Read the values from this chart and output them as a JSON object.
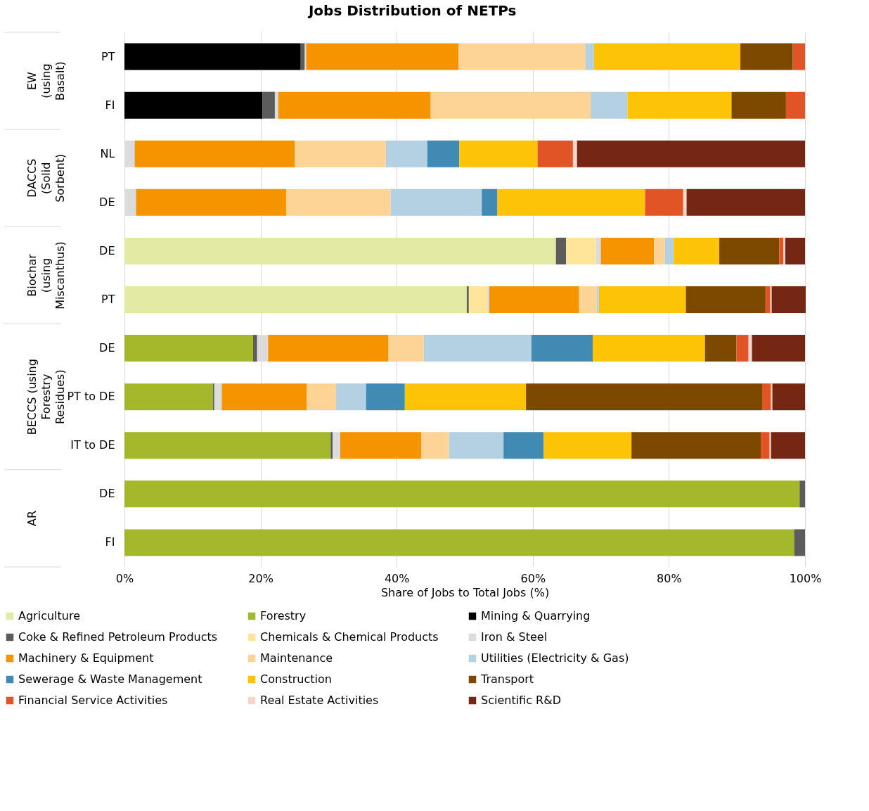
{
  "chart_data": {
    "type": "bar",
    "orientation": "horizontal",
    "stacked": true,
    "title": "Jobs Distribution of NETPs",
    "xlabel": "Share of Jobs to Total Jobs (%)",
    "categories": [
      "PT",
      "FI",
      "NL",
      "DE",
      "DE",
      "PT",
      "DE",
      "PT to DE",
      "IT to DE",
      "DE",
      "FI"
    ],
    "annotations": [
      "EW\n(using\nBasalt)",
      "DACCS\n(Solid\nSorbent)",
      "Biochar\n(using\nMiscanthus)",
      "BECCS (using\nForestry\nResidues)",
      "AR"
    ],
    "xlim": [
      0,
      100
    ],
    "xticks": [
      {
        "value": 0,
        "label": "0%"
      },
      {
        "value": 20,
        "label": "20%"
      },
      {
        "value": 40,
        "label": "40%"
      },
      {
        "value": 60,
        "label": "60%"
      },
      {
        "value": 80,
        "label": "80%"
      },
      {
        "value": 100,
        "label": "100%"
      }
    ],
    "grid": "x",
    "legend": "bottom",
    "series": [
      {
        "name": "Agriculture",
        "color": "#e2eaa3",
        "values": [
          null,
          null,
          null,
          null,
          63.4,
          50.3,
          null,
          null,
          null,
          null,
          null
        ]
      },
      {
        "name": "Forestry",
        "color": "#a5b72a",
        "values": [
          null,
          null,
          null,
          null,
          null,
          null,
          18.9,
          13.0,
          30.3,
          99.2,
          98.4
        ]
      },
      {
        "name": "Mining & Quarrying",
        "color": "#000000",
        "values": [
          25.9,
          20.3,
          null,
          null,
          null,
          null,
          null,
          null,
          null,
          null,
          null
        ]
      },
      {
        "name": "Coke & Refined Petroleum Products",
        "color": "#5c5c5c",
        "values": [
          0.6,
          1.8,
          null,
          null,
          1.5,
          0.3,
          0.6,
          0.2,
          0.3,
          0.8,
          1.6
        ]
      },
      {
        "name": "Chemicals & Chemical Products",
        "color": "#fee59a",
        "values": [
          null,
          null,
          null,
          null,
          4.4,
          2.7,
          null,
          null,
          null,
          null,
          null
        ]
      },
      {
        "name": "Iron & Steel",
        "color": "#dcdcdc",
        "values": [
          0.2,
          0.5,
          1.5,
          1.7,
          0.7,
          0.3,
          1.6,
          1.1,
          1.1,
          null,
          null
        ]
      },
      {
        "name": "Machinery & Equipment",
        "color": "#f69400",
        "values": [
          22.4,
          22.4,
          23.5,
          22.1,
          7.8,
          13.2,
          17.7,
          12.5,
          11.9,
          null,
          null
        ]
      },
      {
        "name": "Maintenance",
        "color": "#fed496",
        "values": [
          18.6,
          23.5,
          13.4,
          15.3,
          1.6,
          2.6,
          5.2,
          4.3,
          4.1,
          null,
          null
        ]
      },
      {
        "name": "Utilities (Electricity & Gas)",
        "color": "#b3d1e2",
        "values": [
          1.3,
          5.4,
          6.1,
          13.4,
          1.3,
          0.3,
          15.8,
          4.4,
          8.0,
          null,
          null
        ]
      },
      {
        "name": "Sewerage & Waste Management",
        "color": "#418ab4",
        "values": [
          null,
          null,
          4.7,
          2.3,
          null,
          null,
          9.0,
          5.7,
          5.9,
          null,
          null
        ]
      },
      {
        "name": "Construction",
        "color": "#fdc307",
        "values": [
          21.5,
          15.3,
          11.5,
          21.7,
          6.7,
          12.8,
          16.5,
          17.8,
          12.9,
          null,
          null
        ]
      },
      {
        "name": "Transport",
        "color": "#7d4800",
        "values": [
          7.7,
          8.0,
          null,
          null,
          8.8,
          11.7,
          4.6,
          34.7,
          19.0,
          null,
          null
        ]
      },
      {
        "name": "Financial Service Activities",
        "color": "#e05426",
        "values": [
          1.8,
          2.8,
          5.2,
          5.6,
          0.6,
          0.7,
          1.8,
          1.3,
          1.3,
          null,
          null
        ]
      },
      {
        "name": "Real Estate Activities",
        "color": "#f8d5cb",
        "values": [
          null,
          null,
          0.6,
          0.5,
          0.3,
          0.2,
          0.5,
          0.2,
          0.2,
          null,
          null
        ]
      },
      {
        "name": "Scientific R&D",
        "color": "#752714",
        "values": [
          null,
          null,
          33.5,
          17.4,
          2.9,
          5.0,
          7.8,
          4.8,
          5.0,
          null,
          null
        ]
      }
    ]
  }
}
